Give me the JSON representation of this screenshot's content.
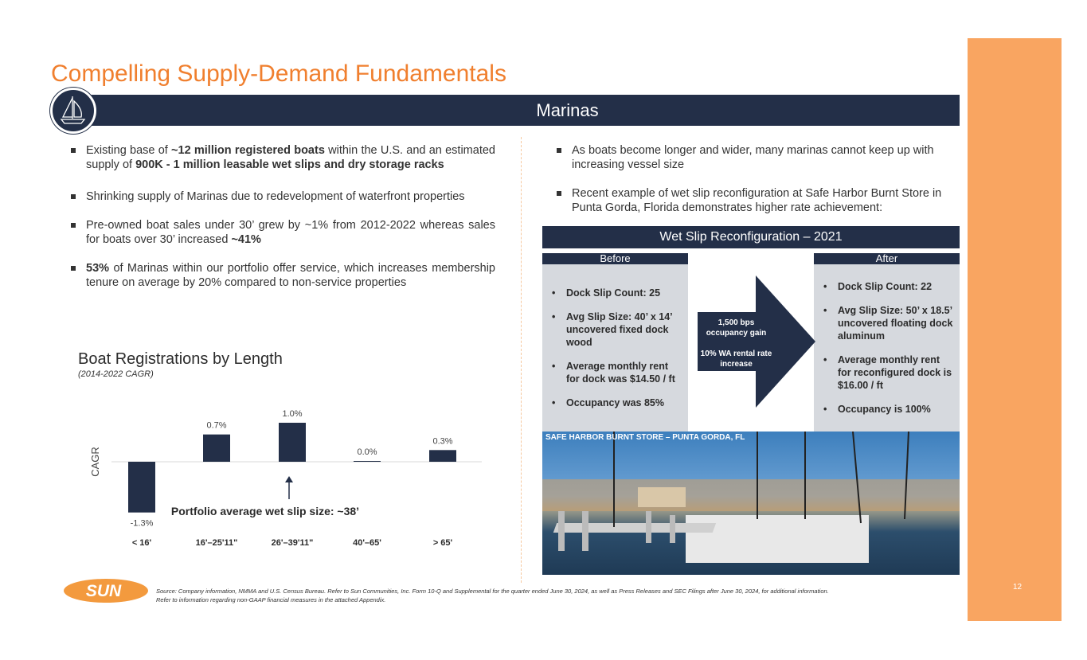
{
  "title": "Compelling Supply-Demand Fundamentals",
  "section": "Marinas",
  "left_bullets": [
    {
      "parts": [
        [
          "Existing base of ",
          false
        ],
        [
          "~12 million registered boats",
          true
        ],
        [
          " within the U.S. and an estimated supply of ",
          false
        ],
        [
          "900K - 1 million leasable wet slips and dry storage racks",
          true
        ]
      ]
    },
    {
      "parts": [
        [
          "Shrinking supply of Marinas due to redevelopment of waterfront properties",
          false
        ]
      ]
    },
    {
      "parts": [
        [
          "Pre-owned boat sales under 30’ grew by ~1% from 2012-2022 whereas sales for boats over 30’ increased ",
          false
        ],
        [
          "~41%",
          true
        ]
      ]
    },
    {
      "parts": [
        [
          "53%",
          true
        ],
        [
          " of Marinas within our portfolio offer service, which increases membership tenure on average by 20% compared to non-service properties",
          false
        ]
      ]
    }
  ],
  "right_bullets": [
    "As boats become longer and wider, many marinas cannot keep up with increasing vessel size",
    "Recent example of wet slip reconfiguration at Safe Harbor Burnt Store in Punta Gorda, Florida demonstrates higher rate achievement:"
  ],
  "reconfig": {
    "title": "Wet Slip Reconfiguration – 2021",
    "before_label": "Before",
    "after_label": "After",
    "before": [
      "Dock Slip Count: 25",
      "Avg Slip Size: 40’ x 14’ uncovered fixed dock wood",
      "Average monthly rent for dock was $14.50 / ft",
      "Occupancy was 85%"
    ],
    "after": [
      "Dock Slip Count: 22",
      "Avg Slip Size: 50’ x 18.5’ uncovered floating dock aluminum",
      "Average monthly rent for reconfigured dock is $16.00 / ft",
      "Occupancy is 100%"
    ],
    "arrow_line1": "1,500 bps occupancy gain",
    "arrow_line2": "10% WA rental rate increase",
    "photo_caption": "SAFE HARBOR BURNT STORE – PUNTA GORDA, FL"
  },
  "chart_data": {
    "type": "bar",
    "title": "Boat Registrations by Length",
    "subtitle": "(2014-2022 CAGR)",
    "ylabel": "CAGR",
    "categories": [
      "< 16'",
      "16'–25'11\"",
      "26'–39'11\"",
      "40'–65'",
      "> 65'"
    ],
    "values": [
      -1.3,
      0.7,
      1.0,
      0.0,
      0.3
    ],
    "data_labels": [
      "-1.3%",
      "0.7%",
      "1.0%",
      "0.0%",
      "0.3%"
    ],
    "annotation": "Portfolio average wet slip size: ~38’",
    "color": "#232F48",
    "grid": false
  },
  "footer": {
    "source_line1": "Source: Company information, NMMA and U.S. Census Bureau. Refer to Sun Communities, Inc. Form 10-Q and Supplemental for the quarter ended June 30, 2024, as well as Press Releases and SEC Filings after June 30, 2024, for additional information.",
    "source_line2": "Refer to information regarding non-GAAP financial measures in the attached Appendix.",
    "logo_text": "SUN",
    "page_number": "12"
  },
  "colors": {
    "accent": "#F07F2E",
    "navy": "#232F48",
    "side_bar": "#F9A561",
    "panel": "#D6D9DE"
  }
}
